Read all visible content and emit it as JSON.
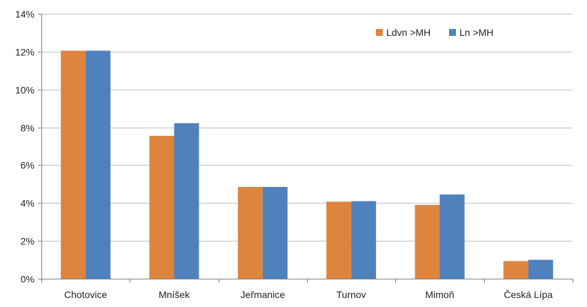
{
  "chart_data": {
    "type": "bar",
    "categories": [
      "Chotovice",
      "Mníšek",
      "Jeřmanice",
      "Turnov",
      "Mimoň",
      "Česká Lípa"
    ],
    "series": [
      {
        "name": "Ldvn >MH",
        "color": "#DD843F",
        "values": [
          12.05,
          7.55,
          4.85,
          4.07,
          3.9,
          0.93
        ]
      },
      {
        "name": "Ln >MH",
        "color": "#4F81BD",
        "values": [
          12.05,
          8.22,
          4.85,
          4.1,
          4.45,
          1.0
        ]
      }
    ],
    "ylim": [
      0,
      14
    ],
    "yticks": [
      0,
      2,
      4,
      6,
      8,
      10,
      12,
      14
    ],
    "ytick_labels": [
      "0%",
      "2%",
      "4%",
      "6%",
      "8%",
      "10%",
      "12%",
      "14%"
    ],
    "grid": true,
    "legend_position": "top-right",
    "title": "",
    "xlabel": "",
    "ylabel": ""
  }
}
